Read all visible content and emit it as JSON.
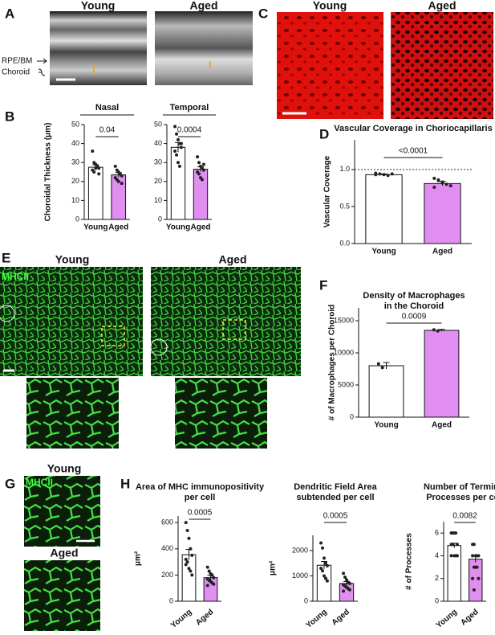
{
  "figure": {
    "panels": [
      "A",
      "B",
      "C",
      "D",
      "E",
      "F",
      "G",
      "H"
    ],
    "groups": [
      "Young",
      "Aged"
    ],
    "layer_labels": [
      "RPE/BM",
      "Choroid"
    ],
    "stain": "MHCII"
  },
  "chart_data": [
    {
      "type": "bar",
      "title": [
        "Nasal"
      ],
      "ylabel": "Choroidal Thickness (μm)",
      "categories": [
        "Young",
        "Aged"
      ],
      "colors": [
        "#ffffff",
        "#e08ff0"
      ],
      "values": [
        27.5,
        23.5
      ],
      "errors": [
        1.3,
        1.2
      ],
      "points": [
        [
          36,
          30,
          29,
          28,
          27,
          26,
          25,
          27,
          28,
          24
        ],
        [
          28,
          26,
          25,
          24,
          23,
          22,
          21,
          20,
          24,
          19
        ]
      ],
      "ylim": [
        0,
        50
      ],
      "yticks": [
        0,
        10,
        20,
        30,
        40,
        50
      ],
      "p_value": "0.04"
    },
    {
      "type": "bar",
      "title": [
        "Temporal"
      ],
      "categories": [
        "Young",
        "Aged"
      ],
      "colors": [
        "#ffffff",
        "#e08ff0"
      ],
      "values": [
        38,
        26.5
      ],
      "errors": [
        2.5,
        1.3
      ],
      "points": [
        [
          49,
          45,
          42,
          40,
          38,
          36,
          34,
          30,
          28,
          40
        ],
        [
          33,
          30,
          28,
          27,
          26,
          25,
          24,
          22,
          21,
          29
        ]
      ],
      "ylim": [
        0,
        50
      ],
      "yticks": [
        0,
        10,
        20,
        30,
        40,
        50
      ],
      "p_value": "0.0004"
    },
    {
      "type": "bar",
      "title": [
        "Vascular Coverage in Choriocapillaris"
      ],
      "ylabel": "Vascular Coverage",
      "categories": [
        "Young",
        "Aged"
      ],
      "colors": [
        "#ffffff",
        "#e08ff0"
      ],
      "values": [
        0.93,
        0.81
      ],
      "errors": [
        0.01,
        0.03
      ],
      "points": [
        [
          0.95,
          0.94,
          0.93,
          0.92,
          0.94,
          0.93
        ],
        [
          0.88,
          0.85,
          0.83,
          0.8,
          0.78,
          0.76,
          0.86,
          0.82
        ]
      ],
      "ylim": [
        0,
        1.4
      ],
      "yticks": [
        {
          "value": 0,
          "label": "0.0"
        },
        {
          "value": 0.5,
          "label": "0.5"
        },
        {
          "value": 1,
          "label": "1.0"
        }
      ],
      "reference_line": 1,
      "p_value": "<0.0001"
    },
    {
      "type": "bar",
      "title": [
        "Density of Macrophages",
        "in the Choroid"
      ],
      "ylabel": "# of Macrophages per Choroid",
      "categories": [
        "Young",
        "Aged"
      ],
      "colors": [
        "#ffffff",
        "#e08ff0"
      ],
      "values": [
        8000,
        13500
      ],
      "errors": [
        500,
        150
      ],
      "points": [
        [
          8300,
          7700
        ],
        [
          13600,
          13400
        ]
      ],
      "ylim": [
        0,
        17000
      ],
      "yticks": [
        0,
        5000,
        10000,
        15000
      ],
      "p_value": "0.0009"
    },
    {
      "type": "bar",
      "title": [
        "Area of MHC immunopositivity",
        "per cell"
      ],
      "ylabel": "μm²",
      "categories": [
        "Young",
        "Aged"
      ],
      "colors": [
        "#ffffff",
        "#e08ff0"
      ],
      "values": [
        355,
        180
      ],
      "errors": [
        40,
        18
      ],
      "points": [
        [
          600,
          540,
          480,
          400,
          350,
          320,
          300,
          250,
          230,
          200,
          280
        ],
        [
          260,
          230,
          210,
          200,
          180,
          170,
          160,
          150,
          140,
          130,
          120
        ]
      ],
      "ylim": [
        0,
        650
      ],
      "yticks": [
        0,
        200,
        400,
        600
      ],
      "p_value": "0.0005"
    },
    {
      "type": "bar",
      "title": [
        "Dendritic Field Area",
        "subtended per cell"
      ],
      "ylabel": "μm²",
      "categories": [
        "Young",
        "Aged"
      ],
      "colors": [
        "#ffffff",
        "#e08ff0"
      ],
      "values": [
        1420,
        700
      ],
      "errors": [
        150,
        80
      ],
      "points": [
        [
          2300,
          2100,
          1700,
          1500,
          1400,
          1300,
          1200,
          1000,
          900,
          800
        ],
        [
          1100,
          950,
          850,
          750,
          700,
          650,
          600,
          550,
          500,
          450,
          400
        ]
      ],
      "ylim": [
        0,
        2600
      ],
      "yticks": [
        0,
        1000,
        2000
      ],
      "p_value": "0.0005"
    },
    {
      "type": "bar",
      "title": [
        "Number of Terminal",
        "Processes per cell"
      ],
      "ylabel": "# of Processes",
      "categories": [
        "Young",
        "Aged"
      ],
      "colors": [
        "#ffffff",
        "#e08ff0"
      ],
      "values": [
        4.9,
        3.7
      ],
      "errors": [
        0.2,
        0.3
      ],
      "points": [
        [
          6,
          6,
          6,
          6,
          5,
          5,
          5,
          4,
          4,
          4,
          4
        ],
        [
          5,
          5,
          4,
          4,
          4,
          4,
          3,
          3,
          3,
          2,
          2,
          1
        ]
      ],
      "ylim": [
        0,
        7
      ],
      "yticks": [
        0,
        2,
        4,
        6
      ],
      "p_value": "0.0082"
    }
  ]
}
